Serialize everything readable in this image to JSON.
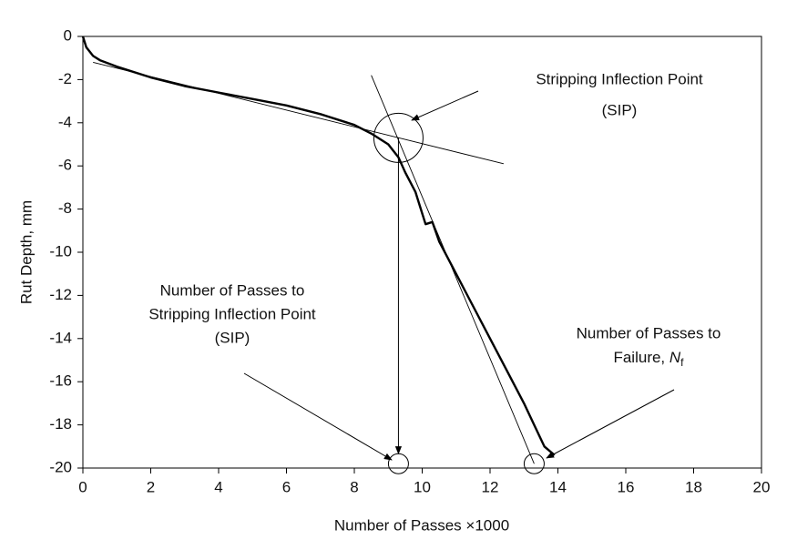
{
  "chart_data": {
    "type": "line",
    "xlabel": "Number of Passes ×1000",
    "ylabel": "Rut Depth, mm",
    "xlim": [
      0,
      20
    ],
    "ylim": [
      -20,
      0
    ],
    "xticks": [
      0,
      2,
      4,
      6,
      8,
      10,
      12,
      14,
      16,
      18,
      20
    ],
    "yticks": [
      0,
      -2,
      -4,
      -6,
      -8,
      -10,
      -12,
      -14,
      -16,
      -18,
      -20
    ],
    "series": [
      {
        "color": "#000000",
        "x": [
          0,
          0.1,
          0.3,
          0.5,
          1,
          2,
          3,
          4,
          5,
          6,
          7,
          8,
          8.5,
          9,
          9.3,
          9.5,
          9.8,
          10,
          10.1,
          10.3,
          10.5,
          11,
          11.5,
          12,
          12.5,
          13,
          13.3,
          13.6,
          13.9
        ],
        "values": [
          0,
          -0.5,
          -0.9,
          -1.1,
          -1.4,
          -1.9,
          -2.3,
          -2.6,
          -2.9,
          -3.2,
          -3.6,
          -4.1,
          -4.5,
          -5.0,
          -5.6,
          -6.3,
          -7.2,
          -8.2,
          -8.7,
          -8.6,
          -9.5,
          -11.0,
          -12.5,
          -14.0,
          -15.5,
          -17.0,
          -18.0,
          -19.0,
          -19.4
        ]
      }
    ],
    "tangent_lines": [
      {
        "x": [
          0.3,
          12.4
        ],
        "y": [
          -1.2,
          -5.9
        ]
      },
      {
        "x": [
          8.5,
          13.3
        ],
        "y": [
          -1.8,
          -19.8
        ]
      }
    ],
    "sip": {
      "x": 9.3,
      "y": -4.7
    },
    "sip_passes": {
      "x": 9.3,
      "y": -19.8
    },
    "failure": {
      "x": 13.3,
      "y": -19.8
    },
    "annotations": [
      {
        "lines": [
          "Stripping Inflection Point",
          "(SIP)"
        ]
      },
      {
        "lines": [
          "Number of Passes to",
          "Stripping Inflection Point",
          "(SIP)"
        ]
      },
      {
        "lines": [
          "Number of Passes to"
        ],
        "last": "Failure, ",
        "symbol": "N",
        "subscript": "f"
      }
    ]
  }
}
